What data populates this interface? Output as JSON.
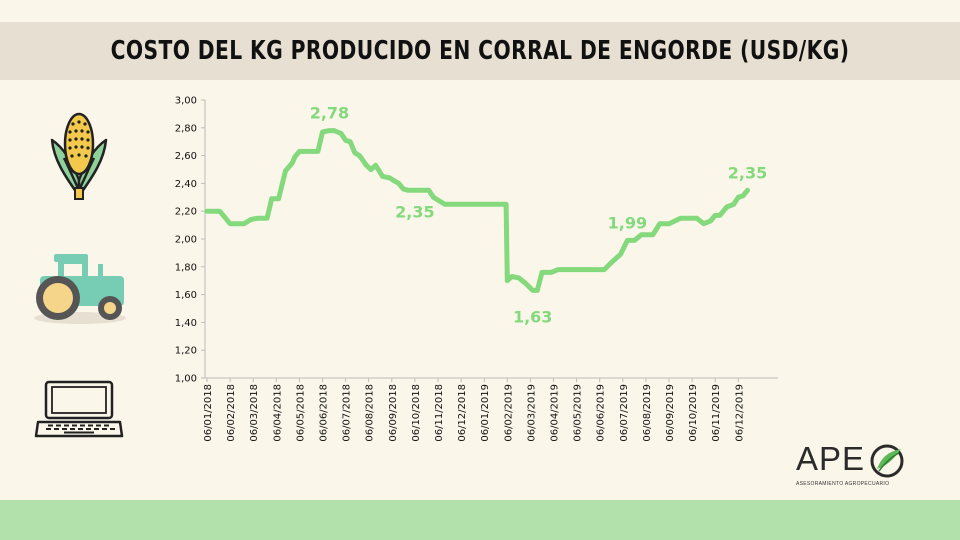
{
  "header": {
    "title": "COSTO DEL KG PRODUCIDO EN CORRAL DE ENGORDE (USD/KG)"
  },
  "icons": [
    "corn-icon",
    "tractor-icon",
    "laptop-icon"
  ],
  "brand": {
    "name": "APE",
    "tagline": "ASESORAMIENTO AGROPECUARIO"
  },
  "colors": {
    "line": "#84d97d",
    "label": "#84d97d",
    "title_band": "#e6dfd2",
    "footer_band": "#b3e1ab",
    "background": "#fbf6ea"
  },
  "chart_data": {
    "type": "line",
    "title": "COSTO DEL KG PRODUCIDO EN CORRAL DE ENGORDE (USD/KG)",
    "xlabel": "",
    "ylabel": "",
    "ylim": [
      1.0,
      3.0
    ],
    "y_ticks": [
      "1,00",
      "1,20",
      "1,40",
      "1,60",
      "1,80",
      "2,00",
      "2,20",
      "2,40",
      "2,60",
      "2,80",
      "3,00"
    ],
    "x_ticks": [
      "06/01/2018",
      "06/02/2018",
      "06/03/2018",
      "06/04/2018",
      "06/05/2018",
      "06/06/2018",
      "06/07/2018",
      "06/08/2018",
      "06/09/2018",
      "06/10/2018",
      "06/11/2018",
      "06/12/2018",
      "06/01/2019",
      "06/02/2019",
      "06/03/2019",
      "06/04/2019",
      "06/05/2019",
      "06/06/2019",
      "06/07/2019",
      "06/08/2019",
      "06/09/2019",
      "06/10/2019",
      "06/11/2019",
      "06/12/2019"
    ],
    "grid": false,
    "series": [
      {
        "x": [
          0,
          0.35,
          0.55,
          1.0,
          1.3,
          1.6,
          1.9,
          2.2,
          2.6,
          2.8,
          3.1,
          3.4,
          3.7,
          3.8,
          4.0,
          4.3,
          4.6,
          4.8,
          5.0,
          5.3,
          5.5,
          5.8,
          6.0,
          6.2,
          6.4,
          6.6,
          6.9,
          7.1,
          7.3,
          7.6,
          7.9,
          8.0,
          8.3,
          8.5,
          8.7,
          8.9,
          9.0,
          9.2,
          9.4,
          9.6,
          9.8,
          10.0,
          10.3,
          11.0,
          11.5,
          12.0,
          12.3,
          12.6,
          12.8,
          12.95,
          13.0,
          13.2,
          13.5,
          13.8,
          14.1,
          14.3,
          14.5,
          14.7,
          14.9,
          15.2,
          15.5,
          16.0,
          16.5,
          17.0,
          17.2,
          17.5,
          17.7,
          17.9,
          18.2,
          18.5,
          18.8,
          19.0,
          19.3,
          19.6,
          20.0,
          20.5,
          21.0,
          21.2,
          21.5,
          21.8,
          22.0,
          22.2,
          22.5,
          22.8,
          23.0,
          23.2,
          23.4
        ],
        "values": [
          2.2,
          2.2,
          2.2,
          2.11,
          2.11,
          2.11,
          2.14,
          2.15,
          2.15,
          2.29,
          2.29,
          2.49,
          2.55,
          2.59,
          2.63,
          2.63,
          2.63,
          2.63,
          2.77,
          2.78,
          2.78,
          2.76,
          2.71,
          2.7,
          2.62,
          2.6,
          2.53,
          2.5,
          2.53,
          2.45,
          2.44,
          2.43,
          2.4,
          2.36,
          2.35,
          2.35,
          2.35,
          2.35,
          2.35,
          2.35,
          2.3,
          2.28,
          2.25,
          2.25,
          2.25,
          2.25,
          2.25,
          2.25,
          2.25,
          2.25,
          1.7,
          1.73,
          1.72,
          1.68,
          1.63,
          1.63,
          1.76,
          1.76,
          1.76,
          1.78,
          1.78,
          1.78,
          1.78,
          1.78,
          1.78,
          1.83,
          1.86,
          1.89,
          1.99,
          1.99,
          2.03,
          2.03,
          2.03,
          2.11,
          2.11,
          2.15,
          2.15,
          2.15,
          2.11,
          2.13,
          2.17,
          2.17,
          2.23,
          2.25,
          2.3,
          2.31,
          2.35
        ]
      }
    ],
    "annotations": [
      {
        "x": 5.3,
        "y": 2.78,
        "text": "2,78"
      },
      {
        "x": 9.0,
        "y": 2.35,
        "text": "2,35"
      },
      {
        "x": 14.1,
        "y": 1.63,
        "text": "1,63"
      },
      {
        "x": 18.2,
        "y": 1.99,
        "text": "1,99"
      },
      {
        "x": 23.4,
        "y": 2.35,
        "text": "2,35"
      }
    ]
  }
}
